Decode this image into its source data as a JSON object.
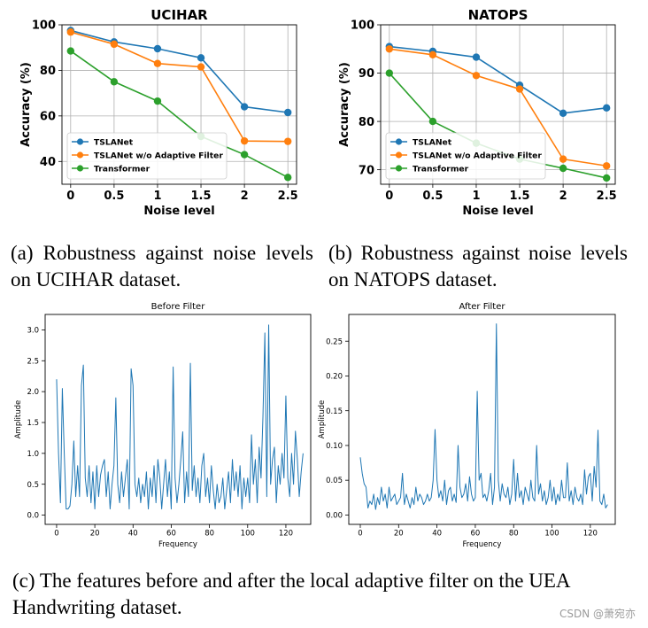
{
  "captions": {
    "a": "(a) Robustness against noise levels on UCIHAR dataset.",
    "b": "(b) Robustness against noise levels on NATOPS dataset.",
    "c": "(c) The features before and after the local adaptive filter on the UEA Handwriting dataset."
  },
  "watermark": "CSDN @萧宛亦",
  "chart_data": [
    {
      "type": "line",
      "title": "UCIHAR",
      "xlabel": "Noise level",
      "ylabel": "Accuracy (%)",
      "x": [
        0,
        0.5,
        1,
        1.5,
        2,
        2.5
      ],
      "x_tick_labels": [
        "0",
        "0.5",
        "1",
        "1.5",
        "2",
        "2.5"
      ],
      "y_ticks": [
        40,
        60,
        80,
        100
      ],
      "ylim": [
        30,
        100
      ],
      "grid": true,
      "legend_position": "lower-left",
      "series": [
        {
          "name": "TSLANet",
          "color": "#1f77b4",
          "values": [
            97.5,
            92.5,
            89.5,
            85.5,
            64,
            61.5
          ]
        },
        {
          "name": "TSLANet w/o Adaptive Filter",
          "color": "#ff7f0e",
          "values": [
            96.8,
            91.5,
            83,
            81.5,
            49,
            48.8
          ]
        },
        {
          "name": "Transformer",
          "color": "#2ca02c",
          "values": [
            88.5,
            75,
            66.5,
            51,
            43,
            33
          ]
        }
      ]
    },
    {
      "type": "line",
      "title": "NATOPS",
      "xlabel": "Noise level",
      "ylabel": "Accuracy (%)",
      "x": [
        0,
        0.5,
        1,
        1.5,
        2,
        2.5
      ],
      "x_tick_labels": [
        "0",
        "0.5",
        "1",
        "1.5",
        "2",
        "2.5"
      ],
      "y_ticks": [
        70,
        80,
        90,
        100
      ],
      "ylim": [
        67,
        100
      ],
      "grid": true,
      "legend_position": "lower-left",
      "series": [
        {
          "name": "TSLANet",
          "color": "#1f77b4",
          "values": [
            95.5,
            94.5,
            93.3,
            87.5,
            81.7,
            82.8
          ]
        },
        {
          "name": "TSLANet w/o Adaptive Filter",
          "color": "#ff7f0e",
          "values": [
            95,
            93.8,
            89.5,
            86.7,
            72.2,
            70.8
          ]
        },
        {
          "name": "Transformer",
          "color": "#2ca02c",
          "values": [
            90,
            80,
            75.5,
            72.2,
            70.3,
            68.3
          ]
        }
      ]
    },
    {
      "type": "line",
      "title": "Before Filter",
      "xlabel": "Frequency",
      "ylabel": "Amplitude",
      "x_ticks": [
        0,
        20,
        40,
        60,
        80,
        100,
        120
      ],
      "y_ticks": [
        0.0,
        0.5,
        1.0,
        1.5,
        2.0,
        2.5,
        3.0
      ],
      "y_tick_labels": [
        "0.0",
        "0.5",
        "1.0",
        "1.5",
        "2.0",
        "2.5",
        "3.0"
      ],
      "xlim": [
        -6,
        133
      ],
      "ylim": [
        -0.15,
        3.25
      ],
      "grid": false,
      "series": [
        {
          "name": "amplitude",
          "color": "#1f77b4",
          "values": [
            2.2,
            1.0,
            0.2,
            2.05,
            1.0,
            0.1,
            0.1,
            0.15,
            0.5,
            1.2,
            0.3,
            0.8,
            0.3,
            2.1,
            2.43,
            0.6,
            0.3,
            0.8,
            0.2,
            0.7,
            0.1,
            0.8,
            0.3,
            0.65,
            0.8,
            0.9,
            0.3,
            0.7,
            0.1,
            0.5,
            0.8,
            1.9,
            0.5,
            0.2,
            0.7,
            0.3,
            0.6,
            0.9,
            0.1,
            2.37,
            2.1,
            0.5,
            0.3,
            0.6,
            0.2,
            0.5,
            0.3,
            0.7,
            0.1,
            0.6,
            0.3,
            0.8,
            0.2,
            0.9,
            0.6,
            0.1,
            0.5,
            0.9,
            0.3,
            0.7,
            0.1,
            2.4,
            0.6,
            0.2,
            0.5,
            0.9,
            1.35,
            0.2,
            0.7,
            0.3,
            2.46,
            0.4,
            0.8,
            0.3,
            0.6,
            0.2,
            0.8,
            1.0,
            0.3,
            0.6,
            0.2,
            0.8,
            0.4,
            0.1,
            0.5,
            0.2,
            0.3,
            0.6,
            0.1,
            0.4,
            0.7,
            0.2,
            0.9,
            0.4,
            0.7,
            0.3,
            0.8,
            0.1,
            0.6,
            0.3,
            0.6,
            0.2,
            1.3,
            0.5,
            0.9,
            0.2,
            1.1,
            0.6,
            1.6,
            2.95,
            0.3,
            3.08,
            0.5,
            0.9,
            1.1,
            0.2,
            0.8,
            0.5,
            1.0,
            0.6,
            1.93,
            0.6,
            0.3,
            1.0,
            0.5,
            1.36,
            0.9,
            0.3,
            0.7,
            1.0
          ]
        }
      ]
    },
    {
      "type": "line",
      "title": "After Filter",
      "xlabel": "Frequency",
      "ylabel": "Amplitude",
      "x_ticks": [
        0,
        20,
        40,
        60,
        80,
        100,
        120
      ],
      "y_ticks": [
        0.0,
        0.05,
        0.1,
        0.15,
        0.2,
        0.25
      ],
      "y_tick_labels": [
        "0.00",
        "0.05",
        "0.10",
        "0.15",
        "0.20",
        "0.25"
      ],
      "xlim": [
        -6,
        133
      ],
      "ylim": [
        -0.0135,
        0.2885
      ],
      "grid": false,
      "series": [
        {
          "name": "amplitude",
          "color": "#1f77b4",
          "values": [
            0.083,
            0.06,
            0.045,
            0.04,
            0.01,
            0.02,
            0.015,
            0.03,
            0.008,
            0.025,
            0.015,
            0.04,
            0.02,
            0.03,
            0.01,
            0.04,
            0.02,
            0.025,
            0.03,
            0.015,
            0.02,
            0.025,
            0.06,
            0.015,
            0.03,
            0.02,
            0.01,
            0.025,
            0.015,
            0.04,
            0.02,
            0.03,
            0.025,
            0.015,
            0.02,
            0.03,
            0.02,
            0.025,
            0.05,
            0.123,
            0.05,
            0.025,
            0.035,
            0.02,
            0.05,
            0.015,
            0.035,
            0.04,
            0.02,
            0.03,
            0.018,
            0.1,
            0.04,
            0.025,
            0.03,
            0.045,
            0.02,
            0.055,
            0.03,
            0.02,
            0.025,
            0.178,
            0.05,
            0.06,
            0.025,
            0.03,
            0.02,
            0.035,
            0.06,
            0.015,
            0.04,
            0.275,
            0.05,
            0.02,
            0.045,
            0.03,
            0.025,
            0.04,
            0.015,
            0.03,
            0.08,
            0.02,
            0.06,
            0.025,
            0.035,
            0.015,
            0.04,
            0.03,
            0.02,
            0.05,
            0.025,
            0.02,
            0.1,
            0.03,
            0.045,
            0.02,
            0.035,
            0.015,
            0.025,
            0.05,
            0.02,
            0.04,
            0.015,
            0.03,
            0.02,
            0.05,
            0.025,
            0.025,
            0.075,
            0.02,
            0.035,
            0.015,
            0.04,
            0.025,
            0.02,
            0.03,
            0.015,
            0.065,
            0.03,
            0.055,
            0.06,
            0.02,
            0.07,
            0.04,
            0.122,
            0.02,
            0.015,
            0.03,
            0.01,
            0.015
          ]
        }
      ]
    }
  ]
}
